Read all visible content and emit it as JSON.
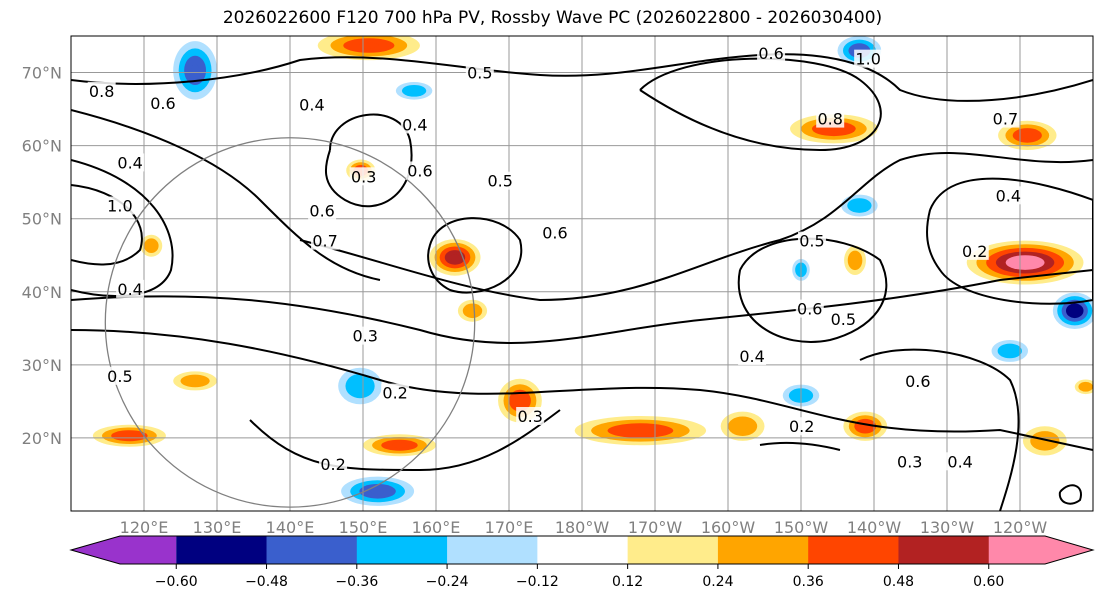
{
  "title": "2026022600 F120 700 hPa PV, Rossby Wave PC (2026022800 - 2026030400)",
  "map": {
    "lon_range": [
      110,
      250
    ],
    "lat_range": [
      10,
      75
    ],
    "lon_ticks": [
      {
        "lon": 120,
        "label": "120°E"
      },
      {
        "lon": 130,
        "label": "130°E"
      },
      {
        "lon": 140,
        "label": "140°E"
      },
      {
        "lon": 150,
        "label": "150°E"
      },
      {
        "lon": 160,
        "label": "160°E"
      },
      {
        "lon": 170,
        "label": "170°E"
      },
      {
        "lon": 180,
        "label": "180°W"
      },
      {
        "lon": 190,
        "label": "170°W"
      },
      {
        "lon": 200,
        "label": "160°W"
      },
      {
        "lon": 210,
        "label": "150°W"
      },
      {
        "lon": 220,
        "label": "140°W"
      },
      {
        "lon": 230,
        "label": "130°W"
      },
      {
        "lon": 240,
        "label": "120°W"
      }
    ],
    "lat_ticks": [
      {
        "lat": 70,
        "label": "70°N"
      },
      {
        "lat": 60,
        "label": "60°N"
      },
      {
        "lat": 50,
        "label": "50°N"
      },
      {
        "lat": 40,
        "label": "40°N"
      },
      {
        "lat": 30,
        "label": "30°N"
      },
      {
        "lat": 20,
        "label": "20°N"
      }
    ],
    "circle": {
      "lon": 140,
      "lat": 35.8,
      "radius_deg": 25.3,
      "color": "#808080"
    },
    "contour_labels": [
      {
        "t": "0.5",
        "lon": 166,
        "lat": 70
      },
      {
        "t": "0.6",
        "lon": 205.9,
        "lat": 72.7
      },
      {
        "t": "1.0",
        "lon": 219.2,
        "lat": 71.9
      },
      {
        "t": "0.8",
        "lon": 114.2,
        "lat": 67.5
      },
      {
        "t": "0.6",
        "lon": 122.6,
        "lat": 65.8
      },
      {
        "t": "0.4",
        "lon": 143,
        "lat": 65.6
      },
      {
        "t": "0.4",
        "lon": 157.1,
        "lat": 62.9
      },
      {
        "t": "0.8",
        "lon": 214,
        "lat": 63.7
      },
      {
        "t": "0.7",
        "lon": 238,
        "lat": 63.7
      },
      {
        "t": "0.4",
        "lon": 118.1,
        "lat": 57.7
      },
      {
        "t": "0.3",
        "lon": 150.1,
        "lat": 55.8
      },
      {
        "t": "0.6",
        "lon": 157.8,
        "lat": 56.6
      },
      {
        "t": "0.5",
        "lon": 168.8,
        "lat": 55.2
      },
      {
        "t": "1.0",
        "lon": 116.7,
        "lat": 51.8
      },
      {
        "t": "0.6",
        "lon": 144.4,
        "lat": 51.1
      },
      {
        "t": "0.7",
        "lon": 144.8,
        "lat": 47
      },
      {
        "t": "0.6",
        "lon": 176.3,
        "lat": 48.1
      },
      {
        "t": "0.5",
        "lon": 211.5,
        "lat": 47
      },
      {
        "t": "0.4",
        "lon": 238.4,
        "lat": 53.2
      },
      {
        "t": "0.2",
        "lon": 233.8,
        "lat": 45.6
      },
      {
        "t": "0.4",
        "lon": 118.1,
        "lat": 40.4
      },
      {
        "t": "0.6",
        "lon": 211.2,
        "lat": 37.7
      },
      {
        "t": "0.5",
        "lon": 215.8,
        "lat": 36.3
      },
      {
        "t": "0.3",
        "lon": 150.3,
        "lat": 34
      },
      {
        "t": "0.4",
        "lon": 203.3,
        "lat": 31.2
      },
      {
        "t": "0.2",
        "lon": 154.4,
        "lat": 26.2
      },
      {
        "t": "0.6",
        "lon": 226,
        "lat": 27.8
      },
      {
        "t": "0.3",
        "lon": 172.9,
        "lat": 23
      },
      {
        "t": "0.2",
        "lon": 210.1,
        "lat": 21.6
      },
      {
        "t": "0.3",
        "lon": 224.9,
        "lat": 16.8
      },
      {
        "t": "0.4",
        "lon": 231.8,
        "lat": 16.8
      },
      {
        "t": "0.2",
        "lon": 145.9,
        "lat": 16.4
      },
      {
        "t": "0.5",
        "lon": 116.7,
        "lat": 28.5
      }
    ],
    "anomalies": [
      {
        "v": 0.4,
        "lon": 150.8,
        "lat": 73.7,
        "rx": 7,
        "ry": 2
      },
      {
        "v": -0.45,
        "lon": 127,
        "lat": 70.3,
        "rx": 3,
        "ry": 4
      },
      {
        "v": -0.4,
        "lon": 218,
        "lat": 73,
        "rx": 3,
        "ry": 2
      },
      {
        "v": -0.3,
        "lon": 157,
        "lat": 67.5,
        "rx": 2.5,
        "ry": 1.2
      },
      {
        "v": 0.45,
        "lon": 214.5,
        "lat": 62.3,
        "rx": 6,
        "ry": 2
      },
      {
        "v": 0.45,
        "lon": 241,
        "lat": 61.4,
        "rx": 4,
        "ry": 2
      },
      {
        "v": 0.4,
        "lon": 149.7,
        "lat": 56.6,
        "rx": 2,
        "ry": 1.5
      },
      {
        "v": 0.5,
        "lon": 162.6,
        "lat": 44.7,
        "rx": 3.5,
        "ry": 2.5
      },
      {
        "v": 0.62,
        "lon": 240.7,
        "lat": 44,
        "rx": 8,
        "ry": 3
      },
      {
        "v": -0.55,
        "lon": 247.5,
        "lat": 37.4,
        "rx": 3,
        "ry": 2.5
      },
      {
        "v": -0.3,
        "lon": 218,
        "lat": 51.8,
        "rx": 2.5,
        "ry": 1.5
      },
      {
        "v": 0.45,
        "lon": 171.5,
        "lat": 25.1,
        "rx": 3,
        "ry": 3
      },
      {
        "v": -0.3,
        "lon": 149.6,
        "lat": 27.1,
        "rx": 3,
        "ry": 2.5
      },
      {
        "v": 0.35,
        "lon": 127,
        "lat": 27.8,
        "rx": 3,
        "ry": 1.3
      },
      {
        "v": 0.4,
        "lon": 118,
        "lat": 20.3,
        "rx": 5,
        "ry": 1.5
      },
      {
        "v": 0.4,
        "lon": 155,
        "lat": 19,
        "rx": 5,
        "ry": 1.5
      },
      {
        "v": -0.4,
        "lon": 152,
        "lat": 12.7,
        "rx": 5,
        "ry": 2
      },
      {
        "v": 0.4,
        "lon": 188,
        "lat": 21,
        "rx": 9,
        "ry": 2
      },
      {
        "v": 0.3,
        "lon": 202,
        "lat": 21.6,
        "rx": 3,
        "ry": 2
      },
      {
        "v": 0.38,
        "lon": 218.8,
        "lat": 21.6,
        "rx": 3,
        "ry": 2
      },
      {
        "v": 0.3,
        "lon": 243.4,
        "lat": 19.6,
        "rx": 3,
        "ry": 2
      },
      {
        "v": -0.3,
        "lon": 238.6,
        "lat": 31.9,
        "rx": 2.5,
        "ry": 1.5
      },
      {
        "v": -0.3,
        "lon": 210,
        "lat": 25.8,
        "rx": 2.5,
        "ry": 1.5
      },
      {
        "v": 0.3,
        "lon": 165,
        "lat": 37.4,
        "rx": 2,
        "ry": 1.5
      },
      {
        "v": 0.3,
        "lon": 217.4,
        "lat": 44.3,
        "rx": 1.5,
        "ry": 2
      },
      {
        "v": -0.3,
        "lon": 210,
        "lat": 43,
        "rx": 1.2,
        "ry": 1.5
      },
      {
        "v": 0.3,
        "lon": 121,
        "lat": 46.3,
        "rx": 1.5,
        "ry": 1.5
      },
      {
        "v": 0.3,
        "lon": 249,
        "lat": 27,
        "rx": 1.5,
        "ry": 1
      }
    ]
  },
  "colorbar": {
    "boundaries": [
      -0.6,
      -0.48,
      -0.36,
      -0.24,
      -0.12,
      0.12,
      0.24,
      0.36,
      0.48,
      0.6
    ],
    "tick_labels": [
      "−0.60",
      "−0.48",
      "−0.36",
      "−0.24",
      "−0.12",
      "0.12",
      "0.24",
      "0.36",
      "0.48",
      "0.60"
    ],
    "colors": [
      "#9933cc",
      "#000080",
      "#3a5fcd",
      "#00bfff",
      "#b0e0ff",
      "#ffffff",
      "#ffec8b",
      "#ffa500",
      "#ff4500",
      "#b22222",
      "#ff88aa"
    ]
  }
}
